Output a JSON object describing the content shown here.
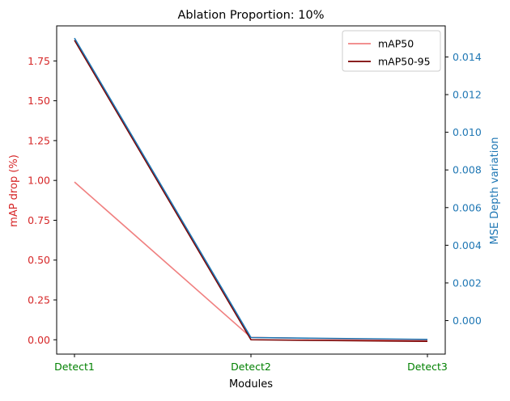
{
  "chart_data": {
    "type": "line",
    "title": "Ablation Proportion: 10%",
    "xlabel": "Modules",
    "ylabel_left": "mAP drop (%)",
    "ylabel_right": "MSE Depth variation",
    "categories": [
      "Detect1",
      "Detect2",
      "Detect3"
    ],
    "ylim_left": [
      -0.09,
      1.97
    ],
    "ylim_right": [
      -0.00178,
      0.01565
    ],
    "yticks_left": [
      "0.00",
      "0.25",
      "0.50",
      "0.75",
      "1.00",
      "1.25",
      "1.50",
      "1.75"
    ],
    "yticks_right": [
      "0.000",
      "0.002",
      "0.004",
      "0.006",
      "0.008",
      "0.010",
      "0.012",
      "0.014"
    ],
    "series": [
      {
        "name": "mAP50",
        "axis": "left",
        "color": "#f08080",
        "values": [
          0.99,
          0.015,
          -0.005
        ]
      },
      {
        "name": "mAP50-95",
        "axis": "left",
        "color": "#7a0000",
        "values": [
          1.88,
          0.0,
          -0.01
        ]
      },
      {
        "axis": "right",
        "color": "#1f77b4",
        "values": [
          0.015,
          -0.0009,
          -0.001
        ]
      }
    ],
    "legend_position": "top-right",
    "grid": false,
    "colors": {
      "left_axis": "#d62728",
      "right_axis": "#1f77b4",
      "x_ticks": "#008000"
    }
  }
}
